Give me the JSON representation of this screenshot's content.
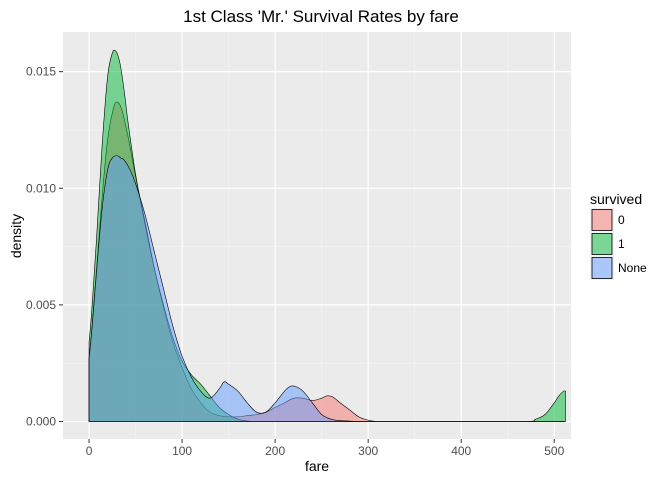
{
  "chart_data": {
    "type": "area",
    "title": "1st Class 'Mr.' Survival Rates by fare",
    "xlabel": "fare",
    "ylabel": "density",
    "xlim": [
      -28,
      518
    ],
    "ylim": [
      -0.00075,
      0.0167
    ],
    "x_ticks": [
      0,
      100,
      200,
      300,
      400,
      500
    ],
    "x_tick_labels": [
      "0",
      "100",
      "200",
      "300",
      "400",
      "500"
    ],
    "y_ticks": [
      0.0,
      0.005,
      0.01,
      0.015
    ],
    "y_tick_labels": [
      "0.000",
      "0.005",
      "0.010",
      "0.015"
    ],
    "grid": true,
    "legend": {
      "title": "survived",
      "position": "right",
      "entries": [
        "0",
        "1",
        "None"
      ]
    },
    "series": [
      {
        "name": "0",
        "color": "#F8766D",
        "x": [
          0,
          3,
          8,
          14,
          20,
          26,
          30,
          35,
          42,
          50,
          60,
          70,
          80,
          90,
          100,
          110,
          120,
          130,
          140,
          150,
          160,
          170,
          180,
          190,
          200,
          210,
          220,
          230,
          240,
          250,
          256,
          262,
          270,
          280,
          290,
          300,
          310,
          320,
          512
        ],
        "y": [
          0.0027,
          0.004,
          0.0065,
          0.0096,
          0.0121,
          0.0134,
          0.0137,
          0.0134,
          0.0122,
          0.0105,
          0.0086,
          0.0066,
          0.0049,
          0.0034,
          0.0023,
          0.0014,
          0.0008,
          0.0004,
          0.00025,
          0.0002,
          0.0002,
          0.00025,
          0.0003,
          0.0004,
          0.0006,
          0.0008,
          0.001,
          0.001,
          0.0009,
          0.001,
          0.0011,
          0.00105,
          0.0008,
          0.0005,
          0.0002,
          6e-05,
          0.0,
          0.0,
          0.0
        ]
      },
      {
        "name": "1",
        "color": "#00BA38",
        "x": [
          0,
          3,
          8,
          14,
          20,
          25,
          28,
          31,
          34,
          38,
          42,
          50,
          60,
          70,
          80,
          90,
          100,
          110,
          120,
          130,
          140,
          150,
          160,
          170,
          180,
          190,
          200,
          300,
          400,
          470,
          480,
          490,
          500,
          505,
          510,
          512
        ],
        "y": [
          0.0034,
          0.0048,
          0.0078,
          0.0118,
          0.0148,
          0.0158,
          0.0159,
          0.0157,
          0.0152,
          0.0141,
          0.0128,
          0.0106,
          0.0085,
          0.0066,
          0.005,
          0.0036,
          0.0026,
          0.002,
          0.0016,
          0.0011,
          0.0006,
          0.0003,
          0.0001,
          2e-05,
          0.0,
          0.0,
          0.0,
          0.0,
          0.0,
          0.0,
          0.0001,
          0.0003,
          0.0008,
          0.0011,
          0.0013,
          0.0013
        ]
      },
      {
        "name": "None",
        "color": "#619CFF",
        "x": [
          0,
          3,
          8,
          14,
          20,
          25,
          30,
          34,
          38,
          44,
          50,
          60,
          70,
          80,
          90,
          100,
          110,
          120,
          130,
          140,
          145,
          150,
          160,
          170,
          180,
          190,
          200,
          210,
          216,
          222,
          230,
          240,
          250,
          260,
          270,
          280,
          290,
          300,
          310,
          512
        ],
        "y": [
          0.0027,
          0.0039,
          0.0064,
          0.0091,
          0.0108,
          0.0113,
          0.0114,
          0.0113,
          0.0112,
          0.0108,
          0.0102,
          0.0089,
          0.0073,
          0.0057,
          0.0041,
          0.0028,
          0.0019,
          0.0013,
          0.001,
          0.0014,
          0.0017,
          0.0016,
          0.0013,
          0.0008,
          0.0004,
          0.0004,
          0.0008,
          0.0013,
          0.0015,
          0.0015,
          0.0013,
          0.0008,
          0.0003,
          0.0001,
          4e-05,
          2e-05,
          0.0,
          0.0,
          0.0,
          0.0
        ]
      }
    ]
  }
}
